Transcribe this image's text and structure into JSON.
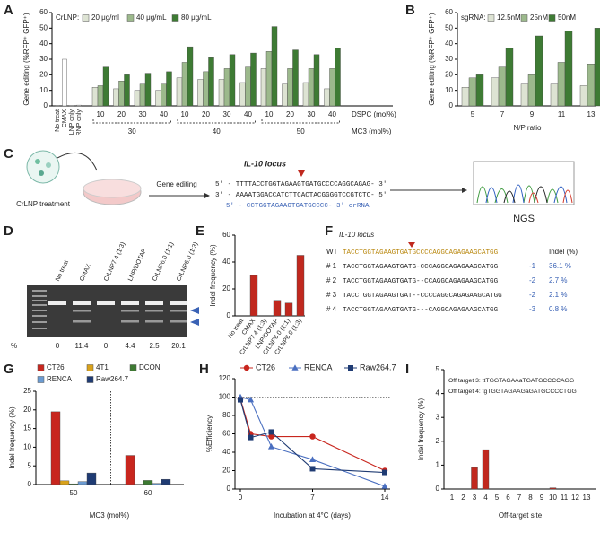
{
  "panel_labels": [
    "A",
    "B",
    "C",
    "D",
    "E",
    "F",
    "G",
    "H",
    "I"
  ],
  "chart_data": [
    {
      "type": "bar",
      "ylabel": "Gene editing (%RFP⁺ GFP⁺)",
      "ylim": [
        0,
        60
      ],
      "yticks": [
        0,
        10,
        20,
        30,
        40,
        50,
        60
      ],
      "legend_title": "CrLNP:",
      "controls": {
        "categories": [
          "No treat",
          "CMAX",
          "LNP only",
          "RNP only"
        ],
        "values": [
          0.3,
          30,
          0.2,
          0.5
        ],
        "color": "#ffffff"
      },
      "categories": [
        "10",
        "20",
        "30",
        "40",
        "10",
        "20",
        "30",
        "40",
        "10",
        "20",
        "30",
        "40"
      ],
      "xlabel": "DSPC (mol%)",
      "groups": [
        "30",
        "40",
        "50"
      ],
      "group_label": "MC3 (mol%)",
      "series": [
        {
          "name": "20 μg/ml",
          "color": "#dde3d3",
          "values": [
            12,
            11,
            10,
            10,
            18,
            17,
            17,
            15,
            24,
            14,
            15,
            11
          ]
        },
        {
          "name": "40 μg/mL",
          "color": "#9cb98c",
          "values": [
            13,
            16,
            14,
            14,
            28,
            22,
            24,
            25,
            35,
            24,
            24,
            24
          ]
        },
        {
          "name": "80 μg/mL",
          "color": "#3e7b34",
          "values": [
            25,
            20,
            21,
            22,
            38,
            31,
            33,
            34,
            51,
            36,
            33,
            37
          ]
        }
      ]
    },
    {
      "type": "bar",
      "ylabel": "Gene editing (%RFP⁺ GFP⁺)",
      "ylim": [
        0,
        60
      ],
      "yticks": [
        0,
        10,
        20,
        30,
        40,
        50,
        60
      ],
      "legend_title": "sgRNA:",
      "categories": [
        "5",
        "7",
        "9",
        "11",
        "13"
      ],
      "xlabel": "N/P ratio",
      "series": [
        {
          "name": "12.5nM",
          "color": "#dde3d3",
          "values": [
            12,
            18,
            14,
            14,
            13
          ]
        },
        {
          "name": "25nM",
          "color": "#9cb98c",
          "values": [
            18,
            25,
            20,
            28,
            27
          ]
        },
        {
          "name": "50nM",
          "color": "#3e7b34",
          "values": [
            20,
            37,
            45,
            48,
            50
          ]
        }
      ]
    },
    {
      "type": "bar",
      "ylabel": "Indel frequency (%)",
      "ylim": [
        0,
        60
      ],
      "yticks": [
        0,
        20,
        40,
        60
      ],
      "categories": [
        "No treat",
        "CMAX",
        "CrLNP7.4 (1:3)",
        "LNP/DOTAP",
        "CrLNP6.0 (1:1)",
        "CrLNP6.0 (1:3)"
      ],
      "values": [
        0,
        30,
        0,
        11.5,
        9.5,
        45
      ],
      "color": "#c0281e"
    },
    {
      "type": "bar",
      "ylabel": "Indel frequency (%)",
      "ylim": [
        0,
        25
      ],
      "yticks": [
        0,
        5,
        10,
        15,
        20,
        25
      ],
      "xlabel": "MC3 (mol%)",
      "categories": [
        "50",
        "60"
      ],
      "series": [
        {
          "name": "CT26",
          "color": "#c8261e",
          "values": [
            19.5,
            7.8
          ]
        },
        {
          "name": "4T1",
          "color": "#d9a21b",
          "values": [
            1,
            0.1
          ]
        },
        {
          "name": "DCON",
          "color": "#3d7a32",
          "values": [
            0.2,
            1.1
          ]
        },
        {
          "name": "RENCA",
          "color": "#6b9bd2",
          "values": [
            0.8,
            0.3
          ]
        },
        {
          "name": "Raw264.7",
          "color": "#1f3b73",
          "values": [
            3.1,
            1.4
          ]
        }
      ]
    },
    {
      "type": "line",
      "xlabel": "Incubation at 4°C (days)",
      "ylabel": "%Efficiency",
      "x": [
        0,
        1,
        3,
        7,
        14
      ],
      "xlim": [
        0,
        14
      ],
      "xticks": [
        0,
        7,
        14
      ],
      "ylim": [
        0,
        120
      ],
      "yticks": [
        0,
        20,
        40,
        60,
        80,
        100,
        120
      ],
      "reference_line": 100,
      "series": [
        {
          "name": "CT26",
          "color": "#c8261e",
          "marker": "circle",
          "values": [
            98,
            60,
            57,
            57,
            20
          ]
        },
        {
          "name": "RENCA",
          "color": "#4a6fc0",
          "marker": "triangle",
          "values": [
            100,
            97,
            46,
            32,
            3
          ]
        },
        {
          "name": "Raw264.7",
          "color": "#1f3b73",
          "marker": "square",
          "values": [
            97,
            56,
            62,
            22,
            18
          ]
        }
      ]
    },
    {
      "type": "bar",
      "ylabel": "Indel frequency (%)",
      "xlabel": "Off-target site",
      "categories": [
        "1",
        "2",
        "3",
        "4",
        "5",
        "6",
        "7",
        "8",
        "9",
        "10",
        "11",
        "12",
        "13"
      ],
      "values": [
        0,
        0,
        0.9,
        1.65,
        0,
        0,
        0,
        0,
        0,
        0.05,
        0,
        0,
        0
      ],
      "ylim": [
        0,
        5
      ],
      "yticks": [
        0,
        1,
        2,
        3,
        4,
        5
      ],
      "color": "#c0281e",
      "annotations": [
        "Off target 3: ttTGGTAGAAaTGATGCCCCAGG",
        "Off target 4: tgTGGTAGAAGaGATGCCCCTGG"
      ]
    }
  ],
  "schematic": {
    "treatment": "CrLNP treatment",
    "step": "Gene editing",
    "locus": "IL-10 locus",
    "lines": [
      "5' - TTTTACCTGGTAGAAGTGATGCCCCAGGCAGAG- 3'",
      "3' - AAAATGGACCATCTTCACTACGGGGTCCGTCTC- 5'",
      "5' - CCTGGTAGAAGTGATGCCCC- 3' crRNA"
    ],
    "readout": "NGS"
  },
  "gel": {
    "lanes": [
      "No treat",
      "CMAX",
      "CrLNP7.4 (1:3)",
      "LNP/DOTAP",
      "CrLNP6.0 (1:1)",
      "CrLNP6.0 (1:3)"
    ],
    "unit": "%",
    "percents": [
      "0",
      "11.4",
      "0",
      "4.4",
      "2.5",
      "20.1"
    ]
  },
  "indel_table": {
    "title": "IL-10 locus",
    "header": "Indel (%)",
    "rows": [
      [
        "WT",
        "TACCTGGTAGAAGTGATGCCCCAGGCAGAGAAGCATGG"
      ],
      [
        "# 1",
        "TACCTGGTAGAAGTGATG-CCCAGGCAGAGAAGCATGG",
        "-1",
        "36.1 %"
      ],
      [
        "# 2",
        "TACCTGGTAGAAGTGATG--CCAGGCAGAGAAGCATGG",
        "-2",
        "2.7 %"
      ],
      [
        "# 3",
        "TACCTGGTAGAAGTGAT--CCCCAGGCAGAGAAGCATGG",
        "-2",
        "2.1 %"
      ],
      [
        "# 4",
        "TACCTGGTAGAAGTGATG---CAGGCAGAGAAGCATGG",
        "-3",
        "0.8 %"
      ]
    ]
  }
}
